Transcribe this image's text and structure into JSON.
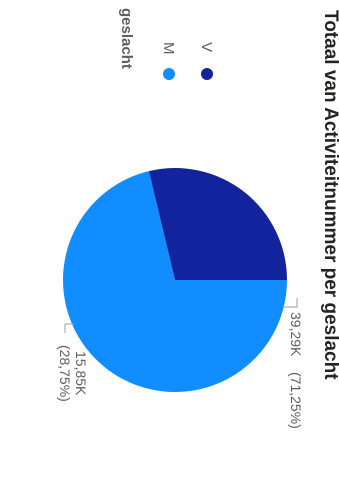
{
  "chart_data": {
    "type": "pie",
    "title": "Totaal van Activiteitnummer per geslacht",
    "legend": {
      "title": "geslacht",
      "placement": "top"
    },
    "slices": [
      {
        "label": "M",
        "value": 39290,
        "display_value": "39,29K",
        "percent_text": "(71,25%)",
        "color": "#118DFF"
      },
      {
        "label": "V",
        "value": 15850,
        "display_value": "15,85K",
        "percent_text": "(28,75%)",
        "color": "#12239E"
      }
    ]
  }
}
